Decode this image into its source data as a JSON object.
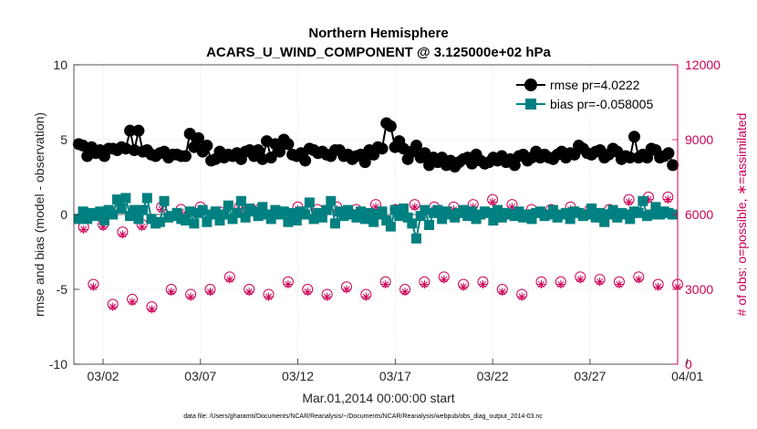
{
  "chart_data": {
    "type": "line",
    "title": "Northern Hemisphere",
    "subtitle": "ACARS_U_WIND_COMPONENT @ 3.125000e+02 hPa",
    "ylabel": "rmse and bias (model - observation)",
    "y2label": "# of obs: o=possible, ∗=assimilated",
    "xlabel": "Mar.01,2014 00:00:00 start",
    "footnote": "data file: /Users/gharamti/Documents/NCAR/Reanalysis/~/Documents/NCAR/Reanalysis/webpub/obs_diag_output_2014-03.nc",
    "ylim": [
      -10,
      10
    ],
    "y2lim": [
      0,
      12000
    ],
    "xlim": [
      0.5,
      31.5
    ],
    "yticks": [
      "10",
      "5",
      "0",
      "-5",
      "-10"
    ],
    "y2ticks": [
      "12000",
      "9000",
      "6000",
      "3000",
      "0"
    ],
    "xtick_values": [
      2,
      7,
      12,
      17,
      22,
      27,
      32
    ],
    "xticks": [
      "03/02",
      "03/07",
      "03/12",
      "03/17",
      "03/22",
      "03/27",
      "04/01"
    ],
    "grid": true,
    "legend_position": "top-right",
    "colors": {
      "rmse": "#000000",
      "bias": "#008080",
      "obs": "#cc0055",
      "zero": "#7f7f7f"
    },
    "series": [
      {
        "name": "rmse pr=4.0222",
        "values": [
          4.7,
          4.6,
          3.9,
          4.5,
          4.1,
          4.3,
          3.9,
          4.4,
          4.4,
          4.3,
          4.5,
          4.4,
          5.6,
          4.3,
          5.6,
          4.2,
          4.3,
          4.0,
          3.9,
          4.1,
          4.2,
          3.8,
          4.0,
          4.0,
          3.9,
          3.9,
          5.4,
          4.5,
          5.1,
          4.2,
          4.6,
          3.6,
          3.7,
          4.2,
          3.8,
          4.0,
          3.9,
          4.1,
          3.7,
          4.2,
          4.3,
          3.9,
          4.3,
          3.7,
          4.9,
          3.8,
          4.7,
          4.2,
          5.0,
          4.7,
          4.0,
          3.9,
          4.1,
          3.6,
          4.4,
          4.3,
          4.1,
          4.2,
          4.0,
          3.9,
          4.3,
          4.3,
          3.9,
          4.0,
          3.7,
          3.9,
          4.0,
          3.5,
          4.3,
          4.0,
          4.5,
          4.4,
          6.1,
          5.9,
          4.5,
          4.9,
          4.4,
          3.7,
          4.2,
          4.6,
          3.8,
          4.1,
          3.3,
          3.8,
          3.5,
          3.8,
          3.3,
          3.6,
          3.2,
          3.5,
          3.7,
          3.8,
          3.4,
          4.0,
          3.6,
          3.4,
          3.5,
          3.8,
          3.6,
          3.9,
          3.5,
          3.7,
          3.3,
          3.9,
          4.0,
          3.6,
          3.8,
          4.2,
          3.8,
          4.0,
          3.8,
          3.7,
          4.0,
          4.2,
          3.8,
          4.1,
          4.0,
          4.6,
          4.4,
          4.1,
          4.0,
          4.2,
          4.3,
          3.8,
          4.0,
          4.4,
          4.2,
          3.7,
          3.9,
          3.8,
          5.2,
          3.8,
          4.0,
          3.8,
          4.4,
          4.3,
          3.8,
          3.9,
          4.1,
          3.3
        ]
      },
      {
        "name": "bias pr=-0.058005",
        "values": [
          -0.3,
          0.2,
          -0.3,
          0.1,
          -0.1,
          0.2,
          -0.4,
          0.3,
          0.0,
          1.0,
          0.4,
          1.1,
          -0.1,
          0.3,
          -0.3,
          0.3,
          1.1,
          -0.3,
          -0.6,
          -0.5,
          0.9,
          -0.2,
          -0.1,
          0.1,
          -0.3,
          -0.4,
          0.2,
          -0.6,
          0.1,
          0.3,
          -0.5,
          0.0,
          0.2,
          -0.4,
          0.0,
          0.6,
          -0.3,
          0.1,
          0.9,
          -0.2,
          0.4,
          0.2,
          -0.1,
          0.5,
          0.0,
          -0.3,
          0.3,
          0.0,
          0.2,
          -0.5,
          0.1,
          -0.4,
          0.2,
          0.0,
          0.8,
          -0.3,
          0.1,
          -0.2,
          0.3,
          0.9,
          -0.6,
          0.2,
          -0.1,
          0.3,
          0.0,
          -0.2,
          0.2,
          -0.3,
          0.1,
          -0.5,
          0.0,
          0.2,
          -0.4,
          -0.8,
          0.3,
          -0.1,
          0.4,
          -0.2,
          -0.6,
          -1.6,
          -0.1,
          0.3,
          -0.7,
          0.1,
          0.3,
          -0.3,
          0.2,
          0.0,
          -0.2,
          0.1,
          0.3,
          -0.1,
          0.2,
          -0.3,
          0.0,
          0.2,
          0.1,
          -0.4,
          0.3,
          -0.2,
          0.1,
          0.0,
          -0.1,
          0.2,
          -0.2,
          0.0,
          -0.3,
          0.1,
          0.2,
          -0.1,
          0.0,
          0.3,
          -0.2,
          0.0,
          0.1,
          -0.3,
          0.2,
          0.1,
          -0.1,
          0.0,
          0.4,
          -0.2,
          0.1,
          -0.5,
          0.0,
          0.3,
          -0.2,
          0.1,
          0.0,
          -0.3,
          0.2,
          0.1,
          0.9,
          -0.1,
          0.0,
          0.5,
          0.0,
          0.2,
          0.1,
          0.0
        ]
      },
      {
        "name": "obs possible",
        "axis": "right",
        "x": [
          1.0,
          1.5,
          2.0,
          2.5,
          3.0,
          3.5,
          4.0,
          4.5,
          5.0,
          5.5,
          6.0,
          6.5,
          7.0,
          7.5,
          8.0,
          8.5,
          9.0,
          9.5,
          10.0,
          10.5,
          11.0,
          11.5,
          12.0,
          12.5,
          13.0,
          13.5,
          14.0,
          14.5,
          15.0,
          15.5,
          16.0,
          16.5,
          17.0,
          17.5,
          18.0,
          18.5,
          19.0,
          19.5,
          20.0,
          20.5,
          21.0,
          21.5,
          22.0,
          22.5,
          23.0,
          23.5,
          24.0,
          24.5,
          25.0,
          25.5,
          26.0,
          26.5,
          27.0,
          27.5,
          28.0,
          28.5,
          29.0,
          29.5,
          30.0,
          30.5,
          31.0,
          31.5
        ],
        "values": [
          5500,
          3200,
          5600,
          2400,
          5300,
          2600,
          5600,
          2300,
          6300,
          3000,
          6200,
          2800,
          6300,
          3000,
          6100,
          3500,
          6300,
          3000,
          6200,
          2800,
          6100,
          3300,
          6300,
          3000,
          6200,
          2800,
          6300,
          3100,
          6200,
          2800,
          6400,
          3300,
          6200,
          3000,
          6400,
          3300,
          6300,
          3500,
          6300,
          3200,
          6400,
          3300,
          6600,
          3000,
          6400,
          2800,
          6200,
          3300,
          6200,
          3300,
          6300,
          3500,
          6200,
          3400,
          6200,
          3300,
          6600,
          3500,
          6700,
          3200,
          6700,
          3200
        ]
      },
      {
        "name": "obs assimilated",
        "axis": "right",
        "x": [
          1.0,
          1.5,
          2.0,
          2.5,
          3.0,
          3.5,
          4.0,
          4.5,
          5.0,
          5.5,
          6.0,
          6.5,
          7.0,
          7.5,
          8.0,
          8.5,
          9.0,
          9.5,
          10.0,
          10.5,
          11.0,
          11.5,
          12.0,
          12.5,
          13.0,
          13.5,
          14.0,
          14.5,
          15.0,
          15.5,
          16.0,
          16.5,
          17.0,
          17.5,
          18.0,
          18.5,
          19.0,
          19.5,
          20.0,
          20.5,
          21.0,
          21.5,
          22.0,
          22.5,
          23.0,
          23.5,
          24.0,
          24.5,
          25.0,
          25.5,
          26.0,
          26.5,
          27.0,
          27.5,
          28.0,
          28.5,
          29.0,
          29.5,
          30.0,
          30.5,
          31.0,
          31.5
        ],
        "values": [
          5400,
          3100,
          5500,
          2300,
          5200,
          2500,
          5500,
          2200,
          6200,
          2900,
          6100,
          2700,
          6200,
          2900,
          6000,
          3400,
          6200,
          2900,
          6100,
          2700,
          6000,
          3200,
          6200,
          2900,
          6100,
          2700,
          6200,
          3000,
          6100,
          2700,
          6300,
          3200,
          6100,
          2900,
          6300,
          3200,
          6200,
          3400,
          6200,
          3100,
          6300,
          3200,
          6500,
          2900,
          6300,
          2700,
          6100,
          3200,
          6100,
          3200,
          6200,
          3400,
          6100,
          3300,
          6100,
          3200,
          6500,
          3400,
          6600,
          3100,
          6600,
          3100
        ]
      }
    ]
  }
}
